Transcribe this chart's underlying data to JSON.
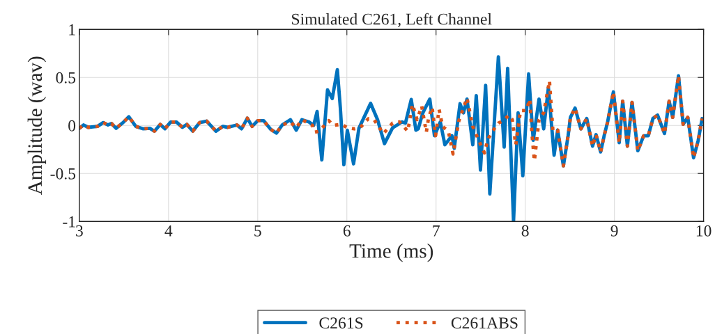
{
  "chart_data": {
    "type": "line",
    "title": "Simulated C261, Left Channel",
    "xlabel": "Time (ms)",
    "ylabel": "Amplitude (wav)",
    "xlim": [
      3,
      10
    ],
    "ylim": [
      -1,
      1
    ],
    "xticks": [
      3,
      4,
      5,
      6,
      7,
      8,
      9,
      10
    ],
    "yticks": [
      -1,
      -0.5,
      0,
      0.5,
      1
    ],
    "grid": true,
    "legend": "bottom",
    "series": [
      {
        "name": "C261S",
        "color": "#0072bd",
        "line_style": "solid",
        "x": [
          3.0,
          3.047,
          3.099,
          3.203,
          3.268,
          3.321,
          3.36,
          3.412,
          3.49,
          3.555,
          3.633,
          3.712,
          3.79,
          3.842,
          3.907,
          3.959,
          4.024,
          4.089,
          4.155,
          4.206,
          4.272,
          4.35,
          4.428,
          4.532,
          4.61,
          4.663,
          4.767,
          4.819,
          4.884,
          4.937,
          5.002,
          5.066,
          5.145,
          5.21,
          5.275,
          5.367,
          5.432,
          5.496,
          5.575,
          5.627,
          5.666,
          5.719,
          5.783,
          5.836,
          5.893,
          5.927,
          5.966,
          6.005,
          6.075,
          6.135,
          6.266,
          6.344,
          6.422,
          6.513,
          6.618,
          6.657,
          6.722,
          6.774,
          6.8,
          6.852,
          6.93,
          6.982,
          7.048,
          7.099,
          7.178,
          7.204,
          7.269,
          7.308,
          7.347,
          7.412,
          7.451,
          7.498,
          7.556,
          7.603,
          7.699,
          7.764,
          7.803,
          7.869,
          7.92,
          7.973,
          8.038,
          8.09,
          8.155,
          8.207,
          8.26,
          8.324,
          8.364,
          8.428,
          8.481,
          8.507,
          8.559,
          8.624,
          8.69,
          8.755,
          8.794,
          8.846,
          8.885,
          8.924,
          8.989,
          9.054,
          9.093,
          9.146,
          9.198,
          9.263,
          9.328,
          9.38,
          9.432,
          9.484,
          9.562,
          9.614,
          9.654,
          9.719,
          9.771,
          9.823,
          9.888,
          9.94,
          9.984
        ],
        "values": [
          -0.03,
          0.005,
          -0.02,
          -0.01,
          0.03,
          0.005,
          0.02,
          -0.03,
          0.03,
          0.09,
          -0.01,
          -0.035,
          -0.03,
          -0.06,
          0.01,
          -0.035,
          0.035,
          0.035,
          -0.02,
          0.01,
          -0.06,
          0.03,
          0.045,
          -0.06,
          -0.01,
          -0.02,
          0.005,
          -0.035,
          0.075,
          -0.01,
          0.05,
          0.05,
          -0.04,
          -0.08,
          0.005,
          0.06,
          -0.05,
          0.06,
          0.036,
          0,
          0.145,
          -0.36,
          0.37,
          0.28,
          0.58,
          0.18,
          -0.41,
          -0.05,
          -0.4,
          -0.03,
          0.23,
          0.06,
          -0.19,
          -0.025,
          0.036,
          0.024,
          0.27,
          -0.05,
          -0.036,
          0.131,
          0.274,
          -0.107,
          0.036,
          -0.202,
          -0.107,
          -0.238,
          0.226,
          0.131,
          0.274,
          -0.202,
          0.31,
          -0.464,
          0.417,
          -0.714,
          0.714,
          -0.226,
          0.595,
          -1.0,
          0.131,
          -0.524,
          0.536,
          -0.155,
          0.274,
          -0.036,
          0.393,
          -0.31,
          -0.048,
          -0.421,
          -0.108,
          0.084,
          0.18,
          -0.036,
          0.072,
          -0.216,
          -0.096,
          -0.276,
          -0.108,
          0.036,
          0.349,
          -0.18,
          0.252,
          -0.216,
          0.24,
          -0.264,
          -0.108,
          -0.108,
          0.072,
          0.108,
          -0.084,
          0.252,
          0.084,
          0.517,
          0.012,
          0.084,
          -0.337,
          -0.156,
          0.072
        ]
      },
      {
        "name": "C261ABS",
        "color": "#d95319",
        "line_style": "dotted",
        "x": [
          3.0,
          3.047,
          3.099,
          3.203,
          3.268,
          3.321,
          3.36,
          3.412,
          3.49,
          3.555,
          3.633,
          3.712,
          3.79,
          3.842,
          3.907,
          3.959,
          4.024,
          4.089,
          4.155,
          4.206,
          4.272,
          4.35,
          4.428,
          4.532,
          4.61,
          4.663,
          4.767,
          4.819,
          4.884,
          4.937,
          5.002,
          5.066,
          5.145,
          5.21,
          5.275,
          5.367,
          5.432,
          5.496,
          5.614,
          5.64,
          5.692,
          5.797,
          5.849,
          5.94,
          6.005,
          6.083,
          6.148,
          6.24,
          6.305,
          6.409,
          6.513,
          6.591,
          6.683,
          6.735,
          6.787,
          6.839,
          6.891,
          6.917,
          6.956,
          6.995,
          7.034,
          7.074,
          7.138,
          7.191,
          7.256,
          7.347,
          7.412,
          7.49,
          7.543,
          7.582,
          7.634,
          7.699,
          7.752,
          7.817,
          7.855,
          7.894,
          7.947,
          8.012,
          8.051,
          8.077,
          8.103,
          8.155,
          8.207,
          8.272,
          8.311,
          8.364,
          8.428,
          8.481,
          8.507,
          8.559,
          8.624,
          8.69,
          8.755,
          8.794,
          8.846,
          8.885,
          8.924,
          8.989,
          9.054,
          9.093,
          9.146,
          9.198,
          9.263,
          9.328,
          9.38,
          9.432,
          9.484,
          9.562,
          9.614,
          9.654,
          9.719,
          9.771,
          9.823,
          9.888,
          9.94,
          9.984
        ],
        "values": [
          -0.03,
          0.005,
          -0.02,
          -0.01,
          0.03,
          0.005,
          0.02,
          -0.03,
          0.03,
          0.09,
          -0.01,
          -0.035,
          -0.03,
          -0.06,
          0.01,
          -0.035,
          0.035,
          0.035,
          -0.02,
          0.01,
          -0.06,
          0.03,
          0.045,
          -0.06,
          -0.01,
          -0.02,
          0.005,
          -0.035,
          0.075,
          -0.01,
          0.05,
          0.05,
          -0.04,
          -0.08,
          0.005,
          0.036,
          -0.024,
          0.06,
          0,
          -0.07,
          -0.06,
          0.05,
          0,
          0.012,
          -0.024,
          -0.036,
          -0.024,
          0.07,
          0.06,
          -0.085,
          0.024,
          0.036,
          -0.06,
          0.22,
          0.06,
          0.202,
          -0.071,
          0.083,
          0.19,
          -0.107,
          0.167,
          -0.012,
          -0.06,
          -0.298,
          0.048,
          0.286,
          -0.012,
          -0.179,
          -0.286,
          -0.143,
          -0.06,
          0.024,
          0.048,
          0.107,
          0.06,
          -0.202,
          0.155,
          0.155,
          0.274,
          -0.107,
          -0.369,
          0.06,
          0.131,
          0.464,
          -0.06,
          -0.048,
          -0.421,
          -0.108,
          0.084,
          0.18,
          -0.036,
          0.072,
          -0.216,
          -0.096,
          -0.276,
          -0.108,
          0.036,
          0.349,
          -0.18,
          0.252,
          -0.216,
          0.24,
          -0.264,
          -0.108,
          -0.108,
          0.072,
          0.108,
          -0.084,
          0.252,
          0.084,
          0.517,
          0.012,
          0.084,
          -0.337,
          -0.156,
          0.072
        ]
      }
    ]
  }
}
